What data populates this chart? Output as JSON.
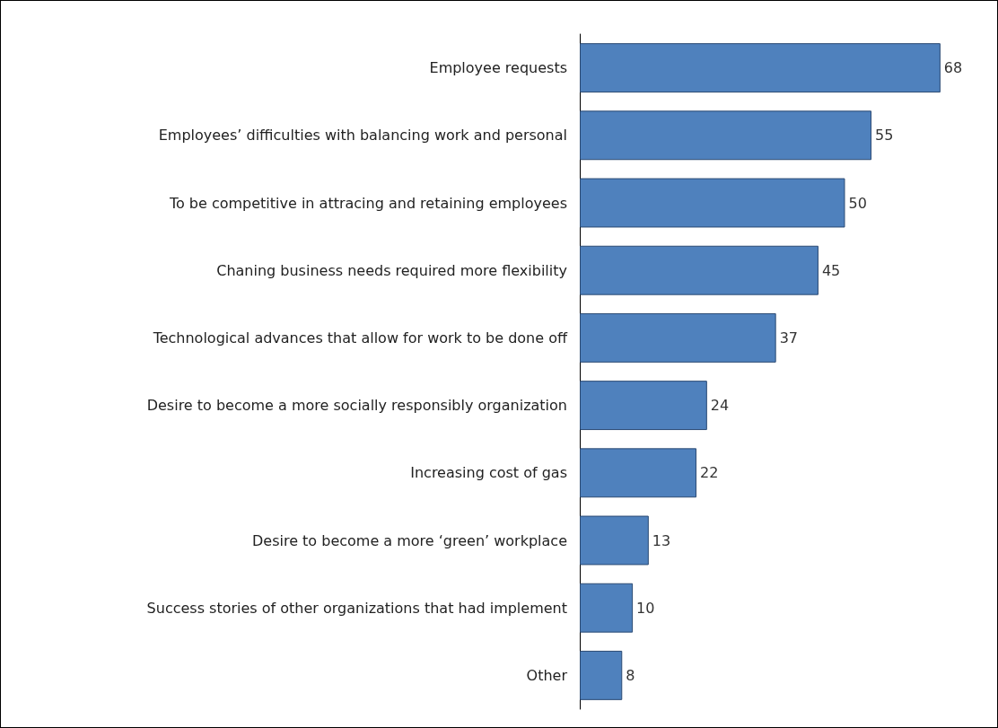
{
  "chart_data": {
    "type": "bar",
    "orientation": "horizontal",
    "categories": [
      "Employee requests",
      "Employees’ difficulties with balancing work and personal",
      "To be competitive in attracing and retaining employees",
      "Chaning business needs required more flexibility",
      "Technological advances that allow for work to be done off",
      "Desire to become a more socially responsibly organization",
      "Increasing cost of gas",
      "Desire to become a more ‘green’ workplace",
      "Success stories of other organizations that had implement",
      "Other"
    ],
    "values": [
      68,
      55,
      50,
      45,
      37,
      24,
      22,
      13,
      10,
      8
    ],
    "color": "#4f81bd",
    "data_labels": true
  }
}
